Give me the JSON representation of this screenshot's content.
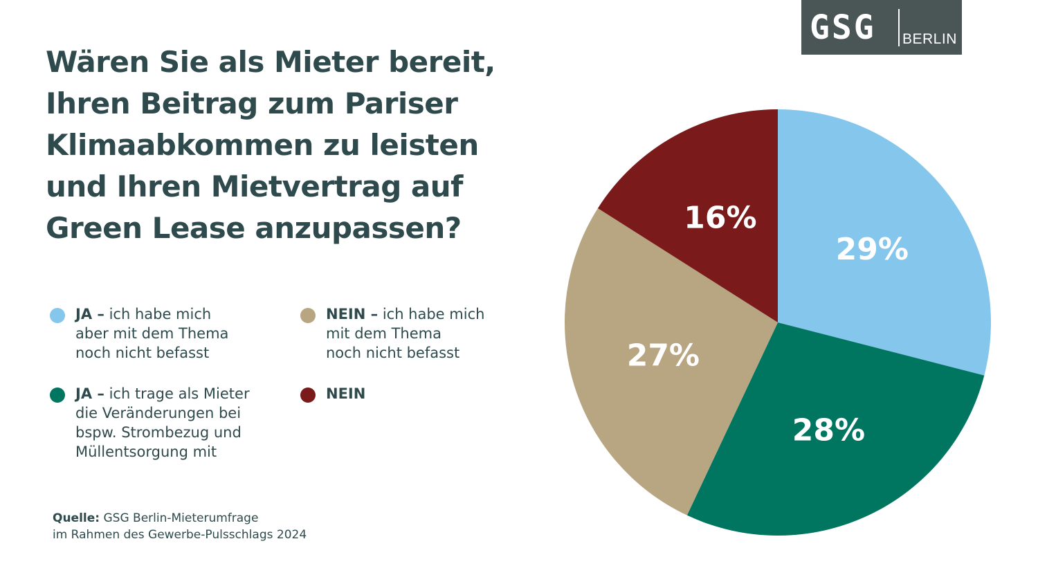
{
  "logo": {
    "mark": "GSG",
    "sub": "BERLIN",
    "bg_color": "#4a5556"
  },
  "title_lines": [
    "Wären Sie als Mieter bereit,",
    "Ihren Beitrag zum Pariser",
    "Klimaabkommen zu leisten",
    "und Ihren Mietvertrag auf",
    "Green Lease anzupassen?"
  ],
  "legend": [
    {
      "bold": "JA –",
      "lines": [
        "ich habe mich",
        "aber mit dem Thema",
        "noch nicht befasst"
      ],
      "color": "#85c6ec"
    },
    {
      "bold": "NEIN –",
      "lines": [
        "ich habe mich",
        "mit dem Thema",
        "noch nicht befasst"
      ],
      "color": "#b8a582"
    },
    {
      "bold": "JA –",
      "lines": [
        "ich trage als Mieter",
        "die Veränderungen bei",
        "bspw. Strombezug und",
        "Müllentsorgung mit"
      ],
      "color": "#007560"
    },
    {
      "bold": "NEIN",
      "lines": [
        ""
      ],
      "color": "#7a1a1a"
    }
  ],
  "source": {
    "label": "Quelle:",
    "line1": "GSG Berlin-Mieterumfrage",
    "line2": "im Rahmen des Gewerbe-Pulsschlags 2024"
  },
  "chart_data": {
    "type": "pie",
    "start": "12 o'clock, clockwise",
    "slices": [
      {
        "label": "29%",
        "value": 29,
        "color": "#85c6ec"
      },
      {
        "label": "28%",
        "value": 28,
        "color": "#007560"
      },
      {
        "label": "27%",
        "value": 27,
        "color": "#b8a582"
      },
      {
        "label": "16%",
        "value": 16,
        "color": "#7a1a1a"
      }
    ]
  }
}
